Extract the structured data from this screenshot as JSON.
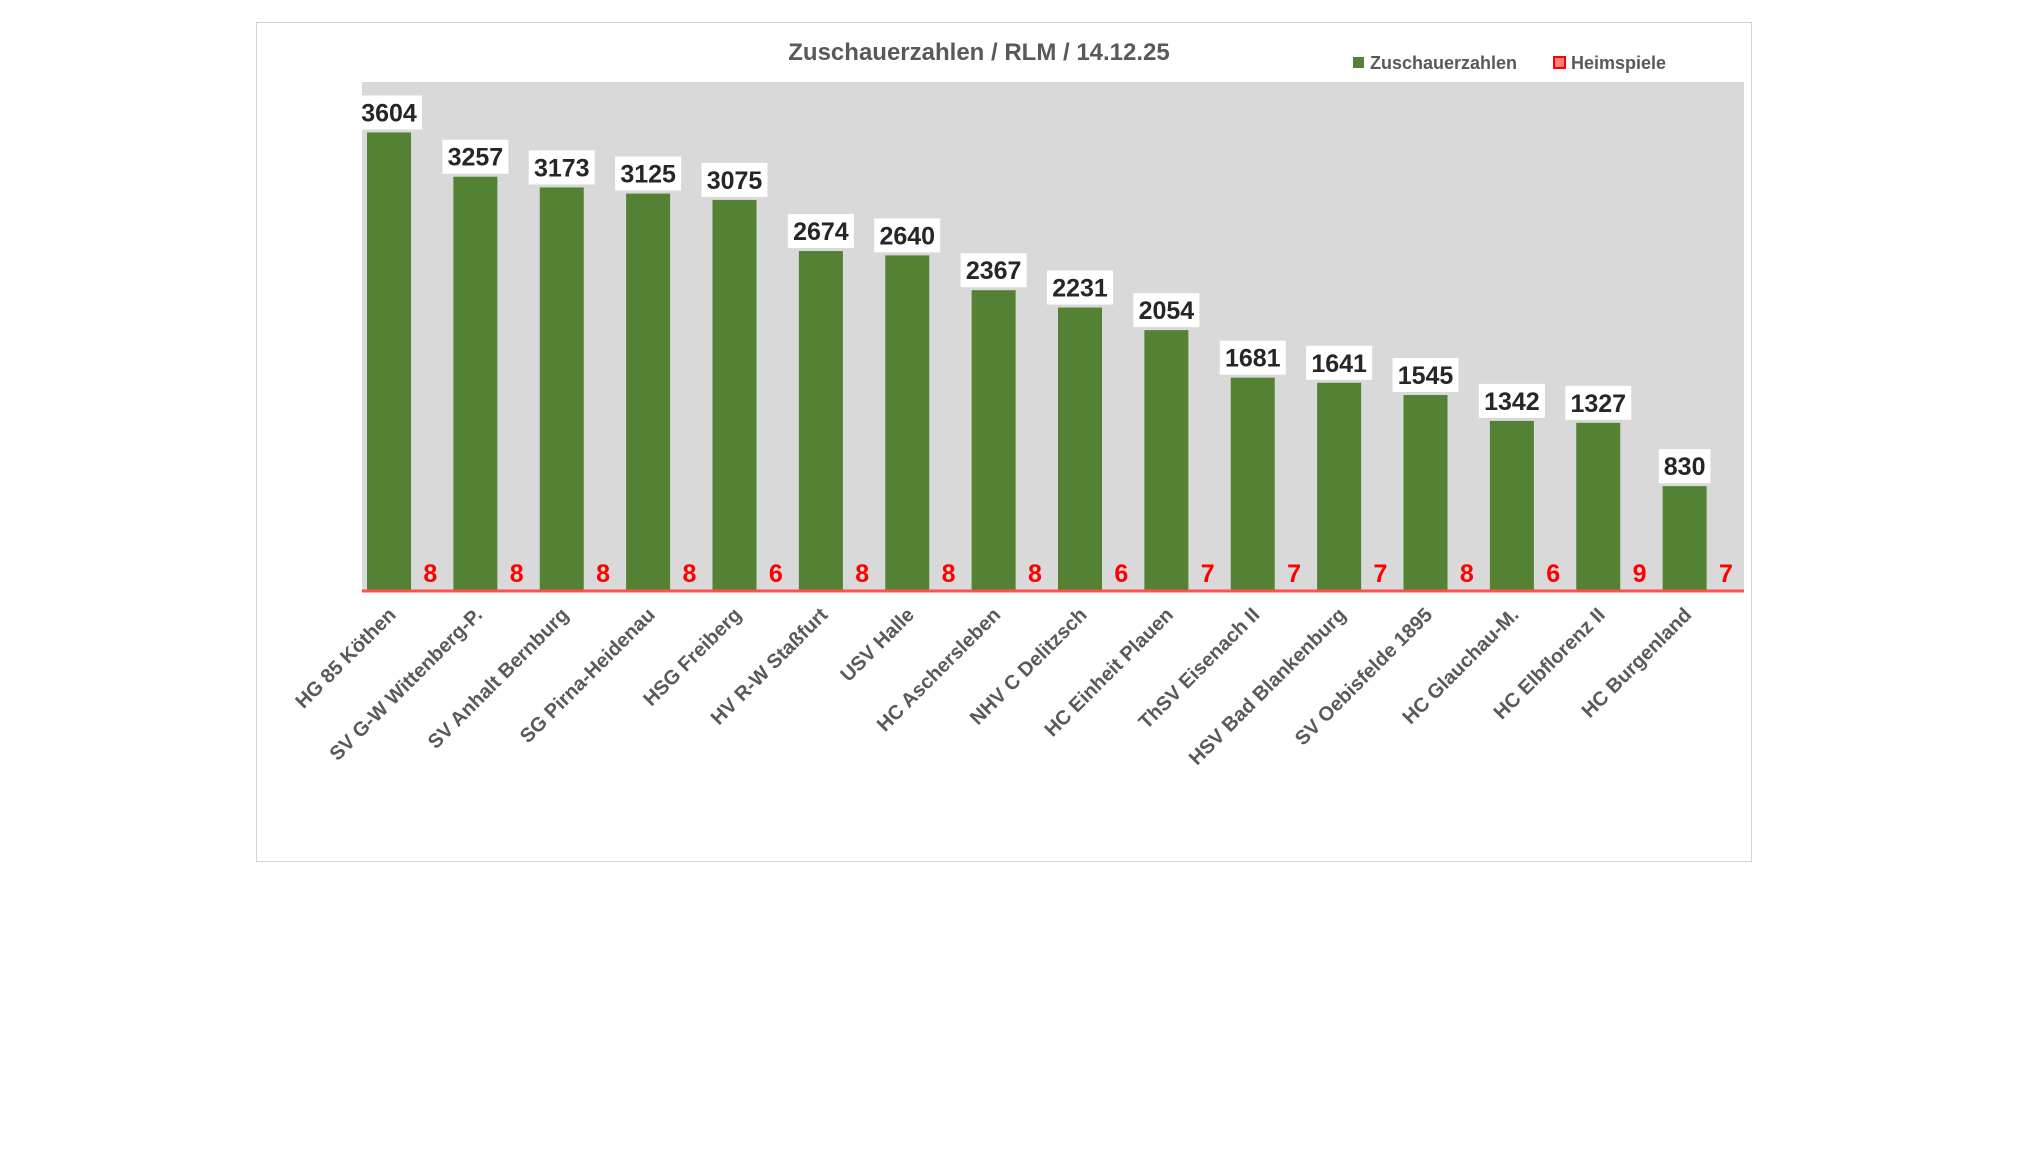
{
  "chart_data": {
    "type": "bar",
    "title": "Zuschauerzahlen / RLM / 14.12.25",
    "categories": [
      "HG 85 Köthen",
      "SV G-W Wittenberg-P.",
      "SV Anhalt Bernburg",
      "SG Pirna-Heidenau",
      "HSG Freiberg",
      "HV R-W Staßfurt",
      "USV Halle",
      "HC Aschersleben",
      "NHV C Delitzsch",
      "HC Einheit Plauen",
      "ThSV Eisenach II",
      "HSV Bad Blankenburg",
      "SV Oebisfelde 1895",
      "HC Glauchau-M.",
      "HC Elbflorenz II",
      "HC Burgenland"
    ],
    "series": [
      {
        "name": "Zuschauerzahlen",
        "color": "#548235",
        "values": [
          3604,
          3257,
          3173,
          3125,
          3075,
          2674,
          2640,
          2367,
          2231,
          2054,
          1681,
          1641,
          1545,
          1342,
          1327,
          830
        ]
      },
      {
        "name": "Heimspiele",
        "color": "#ff0000",
        "values": [
          8,
          8,
          8,
          8,
          6,
          8,
          8,
          8,
          6,
          7,
          7,
          7,
          8,
          6,
          9,
          7
        ]
      }
    ],
    "ylim": [
      0,
      4000
    ],
    "xlabel": "",
    "ylabel": "",
    "grid": false,
    "legend_position": "top-right",
    "plot_background": "#d9d9d9",
    "baseline_color": "#ff5050"
  }
}
